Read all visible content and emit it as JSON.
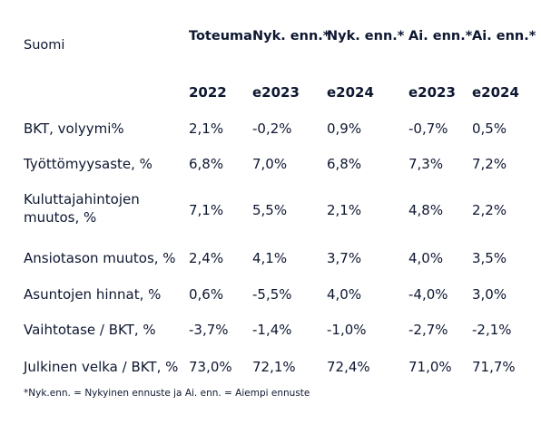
{
  "table": {
    "country": "Suomi",
    "columns": [
      {
        "heading": "Toteuma",
        "year": "2022"
      },
      {
        "heading": "Nyk. enn.*",
        "year": "e2023"
      },
      {
        "heading": "Nyk. enn.*",
        "year": "e2024"
      },
      {
        "heading": "Ai. enn.*",
        "year": "e2023"
      },
      {
        "heading": "Ai. enn.*",
        "year": "e2024"
      }
    ],
    "rows": [
      {
        "label": "BKT, volyymi%",
        "values": [
          "2,1%",
          "-0,2%",
          "0,9%",
          "-0,7%",
          "0,5%"
        ]
      },
      {
        "label": "Työttömyysaste, %",
        "values": [
          "6,8%",
          "7,0%",
          "6,8%",
          "7,3%",
          "7,2%"
        ]
      },
      {
        "label": "Kuluttajahintojen muutos, %",
        "values": [
          "7,1%",
          "5,5%",
          "2,1%",
          "4,8%",
          "2,2%"
        ]
      },
      {
        "label": "Ansiotason muutos, %",
        "values": [
          "2,4%",
          "4,1%",
          "3,7%",
          "4,0%",
          "3,5%"
        ]
      },
      {
        "label": "Asuntojen hinnat, %",
        "values": [
          "0,6%",
          "-5,5%",
          "4,0%",
          "-4,0%",
          "3,0%"
        ]
      },
      {
        "label": "Vaihtotase / BKT, %",
        "values": [
          "-3,7%",
          "-1,4%",
          "-1,0%",
          "-2,7%",
          "-2,1%"
        ]
      },
      {
        "label": "Julkinen velka / BKT, %",
        "values": [
          "73,0%",
          "72,1%",
          "72,4%",
          "71,0%",
          "71,7%"
        ]
      }
    ]
  },
  "footnote": "*Nyk.enn. = Nykyinen ennuste ja Ai. enn. = Aiempi ennuste"
}
